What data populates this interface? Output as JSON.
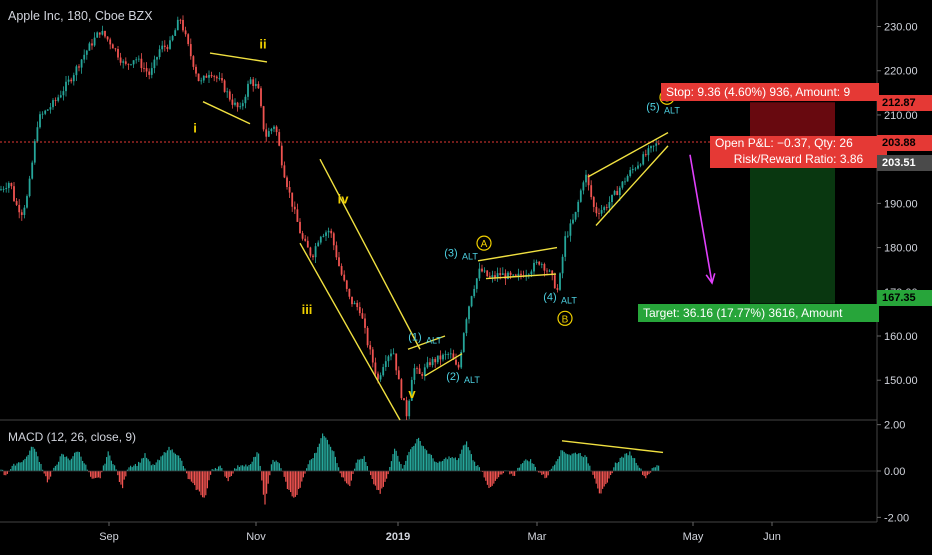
{
  "header": {
    "title": "Apple Inc, 180, Cboe BZX"
  },
  "macd_panel": {
    "title": "MACD (12, 26, close, 9)"
  },
  "colors": {
    "background": "#000000",
    "candle_up": "#26a69a",
    "candle_down": "#ef5350",
    "wave_label": "#f0d000",
    "alt_label": "#4dd0e1",
    "trendline": "#f0e040",
    "projection_arrow": "#e040fb",
    "stop_zone": "#7a0a12",
    "target_zone": "#0a3d12",
    "current_price_line": "#e53935"
  },
  "chart_data": {
    "type": "candlestick",
    "title": "Apple Inc, 180, Cboe BZX",
    "x_ticks": [
      "Sep",
      "Nov",
      "2019",
      "Mar",
      "May",
      "Jun"
    ],
    "y_ticks": [
      "230.00",
      "220.00",
      "210.00",
      "200.00",
      "190.00",
      "180.00",
      "170.00",
      "160.00",
      "150.00"
    ],
    "ylim": [
      141,
      236
    ],
    "price_path": [
      [
        0,
        193
      ],
      [
        10,
        195
      ],
      [
        15,
        190
      ],
      [
        22,
        188
      ],
      [
        28,
        192
      ],
      [
        38,
        209
      ],
      [
        55,
        213
      ],
      [
        70,
        218
      ],
      [
        85,
        224
      ],
      [
        100,
        229
      ],
      [
        112,
        226
      ],
      [
        125,
        221
      ],
      [
        135,
        223
      ],
      [
        150,
        219
      ],
      [
        160,
        225
      ],
      [
        170,
        226
      ],
      [
        180,
        232
      ],
      [
        190,
        224
      ],
      [
        200,
        217
      ],
      [
        210,
        220
      ],
      [
        222,
        217
      ],
      [
        232,
        213
      ],
      [
        240,
        211
      ],
      [
        250,
        218
      ],
      [
        258,
        216
      ],
      [
        265,
        205
      ],
      [
        275,
        208
      ],
      [
        283,
        198
      ],
      [
        292,
        190
      ],
      [
        302,
        182
      ],
      [
        312,
        178
      ],
      [
        320,
        183
      ],
      [
        330,
        184
      ],
      [
        340,
        175
      ],
      [
        350,
        168
      ],
      [
        360,
        166
      ],
      [
        368,
        158
      ],
      [
        378,
        150
      ],
      [
        385,
        155
      ],
      [
        393,
        157
      ],
      [
        400,
        148
      ],
      [
        407,
        142
      ],
      [
        413,
        153
      ],
      [
        420,
        151
      ],
      [
        430,
        154
      ],
      [
        440,
        155
      ],
      [
        450,
        156
      ],
      [
        458,
        152
      ],
      [
        465,
        163
      ],
      [
        472,
        170
      ],
      [
        480,
        175
      ],
      [
        490,
        173
      ],
      [
        500,
        174
      ],
      [
        515,
        173
      ],
      [
        530,
        175
      ],
      [
        540,
        177
      ],
      [
        550,
        174
      ],
      [
        558,
        170
      ],
      [
        565,
        182
      ],
      [
        575,
        187
      ],
      [
        585,
        197
      ],
      [
        595,
        188
      ],
      [
        605,
        189
      ],
      [
        618,
        193
      ],
      [
        630,
        197
      ],
      [
        642,
        200
      ],
      [
        650,
        202
      ],
      [
        660,
        204
      ]
    ],
    "current_price": 203.88,
    "price_labels": [
      {
        "label": "212.87",
        "value": 212.87,
        "kind": "stop"
      },
      {
        "label": "203.88",
        "value": 203.88,
        "kind": "current"
      },
      {
        "label": "203.51",
        "value": 203.51,
        "kind": "entry"
      },
      {
        "label": "167.35",
        "value": 167.35,
        "kind": "target"
      }
    ],
    "elliott_waves": [
      {
        "label": "i",
        "x": 195,
        "price": 206,
        "style": "main"
      },
      {
        "label": "ii",
        "x": 263,
        "price": 225,
        "style": "main"
      },
      {
        "label": "iii",
        "x": 307,
        "price": 165,
        "style": "main"
      },
      {
        "label": "iv",
        "x": 343,
        "price": 190,
        "style": "main"
      },
      {
        "label": "v",
        "x": 412,
        "price": 146,
        "style": "main"
      },
      {
        "label": "(1)",
        "x": 415,
        "price": 159,
        "style": "alt",
        "suffix": "ALT"
      },
      {
        "label": "(2)",
        "x": 453,
        "price": 150,
        "style": "alt",
        "suffix": "ALT"
      },
      {
        "label": "(3)",
        "x": 451,
        "price": 178,
        "style": "alt",
        "suffix": "ALT"
      },
      {
        "label": "(4)",
        "x": 550,
        "price": 168,
        "style": "alt",
        "suffix": "ALT"
      },
      {
        "label": "(5)",
        "x": 653,
        "price": 211,
        "style": "alt",
        "suffix": "ALT"
      },
      {
        "label": "A",
        "x": 484,
        "price": 181,
        "style": "circle"
      },
      {
        "label": "B",
        "x": 565,
        "price": 164,
        "style": "circle"
      },
      {
        "label": "C",
        "x": 667,
        "price": 214,
        "style": "circle"
      }
    ],
    "trendlines": [
      {
        "from": [
          210,
          224
        ],
        "to": [
          267,
          222
        ]
      },
      {
        "from": [
          203,
          213
        ],
        "to": [
          250,
          208
        ]
      },
      {
        "from": [
          320,
          200
        ],
        "to": [
          420,
          157
        ]
      },
      {
        "from": [
          300,
          181
        ],
        "to": [
          400,
          141
        ]
      },
      {
        "from": [
          408,
          157
        ],
        "to": [
          445,
          160
        ]
      },
      {
        "from": [
          425,
          151
        ],
        "to": [
          462,
          156
        ]
      },
      {
        "from": [
          478,
          177
        ],
        "to": [
          557,
          180
        ]
      },
      {
        "from": [
          486,
          173
        ],
        "to": [
          556,
          174
        ]
      },
      {
        "from": [
          588,
          196
        ],
        "to": [
          668,
          206
        ]
      },
      {
        "from": [
          596,
          185
        ],
        "to": [
          668,
          203
        ]
      }
    ],
    "projection": {
      "from": [
        690,
        201
      ],
      "to": [
        712,
        172
      ]
    },
    "risk_reward": {
      "stop_box": "Stop: 9.36 (4.60%) 936, Amount: 9",
      "pnl_box": "Open P&L: −0.37, Qty: 26",
      "rr_box": "Risk/Reward Ratio: 3.86",
      "target_box": "Target: 36.16 (17.77%) 3616, Amount",
      "x_from": 750,
      "x_to": 835,
      "stop": 212.87,
      "entry": 203.51,
      "target": 167.35
    },
    "macd": {
      "y_ticks": [
        "2.00",
        "0.00",
        "-2.00"
      ],
      "ylim": [
        -2.2,
        2.2
      ],
      "hist_path": [
        [
          0,
          0.2
        ],
        [
          5,
          -0.2
        ],
        [
          15,
          0.3
        ],
        [
          25,
          0.5
        ],
        [
          33,
          1.1
        ],
        [
          40,
          0.4
        ],
        [
          48,
          -0.5
        ],
        [
          55,
          0.2
        ],
        [
          62,
          0.7
        ],
        [
          70,
          0.5
        ],
        [
          78,
          0.9
        ],
        [
          85,
          0.3
        ],
        [
          92,
          -0.4
        ],
        [
          100,
          -0.3
        ],
        [
          108,
          0.8
        ],
        [
          115,
          0.2
        ],
        [
          122,
          -0.8
        ],
        [
          128,
          0.2
        ],
        [
          138,
          0.3
        ],
        [
          145,
          0.7
        ],
        [
          152,
          0.2
        ],
        [
          160,
          0.5
        ],
        [
          168,
          1.0
        ],
        [
          176,
          0.8
        ],
        [
          182,
          0.4
        ],
        [
          188,
          -0.3
        ],
        [
          195,
          -0.7
        ],
        [
          205,
          -1.2
        ],
        [
          212,
          0.1
        ],
        [
          220,
          0.2
        ],
        [
          228,
          -0.4
        ],
        [
          235,
          0.1
        ],
        [
          242,
          0.3
        ],
        [
          250,
          0.2
        ],
        [
          258,
          0.9
        ],
        [
          265,
          -1.5
        ],
        [
          272,
          0.5
        ],
        [
          280,
          0.3
        ],
        [
          288,
          -0.8
        ],
        [
          295,
          -1.2
        ],
        [
          302,
          -0.5
        ],
        [
          308,
          0.3
        ],
        [
          316,
          0.8
        ],
        [
          322,
          1.6
        ],
        [
          328,
          1.3
        ],
        [
          335,
          0.7
        ],
        [
          342,
          -0.3
        ],
        [
          350,
          -0.6
        ],
        [
          356,
          0.4
        ],
        [
          364,
          0.6
        ],
        [
          372,
          -0.4
        ],
        [
          380,
          -1.0
        ],
        [
          388,
          -0.2
        ],
        [
          395,
          1.1
        ],
        [
          402,
          0.1
        ],
        [
          410,
          0.9
        ],
        [
          418,
          1.4
        ],
        [
          428,
          0.8
        ],
        [
          438,
          0.3
        ],
        [
          448,
          0.6
        ],
        [
          458,
          0.5
        ],
        [
          466,
          1.3
        ],
        [
          474,
          0.4
        ],
        [
          482,
          0.0
        ],
        [
          490,
          -0.8
        ],
        [
          498,
          -0.3
        ],
        [
          506,
          0.0
        ],
        [
          514,
          -0.2
        ],
        [
          522,
          0.4
        ],
        [
          530,
          0.5
        ],
        [
          538,
          0.0
        ],
        [
          546,
          -0.3
        ],
        [
          554,
          0.3
        ],
        [
          562,
          0.9
        ],
        [
          570,
          0.7
        ],
        [
          578,
          0.8
        ],
        [
          586,
          0.6
        ],
        [
          594,
          -0.2
        ],
        [
          600,
          -1.0
        ],
        [
          608,
          -0.5
        ],
        [
          615,
          0.3
        ],
        [
          622,
          0.6
        ],
        [
          630,
          0.8
        ],
        [
          638,
          0.3
        ],
        [
          645,
          -0.3
        ],
        [
          653,
          0.1
        ],
        [
          660,
          0.3
        ]
      ],
      "divergence_line": {
        "from": [
          562,
          1.3
        ],
        "to": [
          663,
          0.8
        ]
      }
    }
  }
}
